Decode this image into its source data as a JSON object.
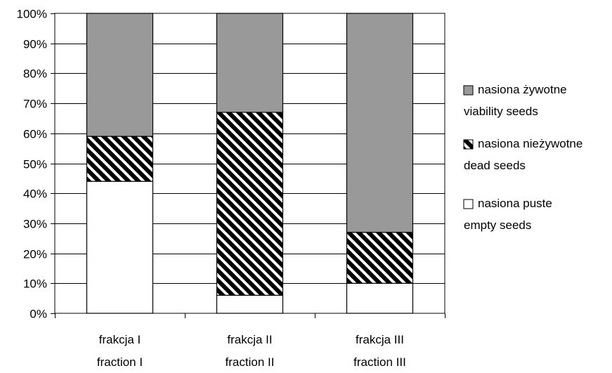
{
  "chart_data": {
    "type": "bar",
    "stacked": true,
    "percent_stacked": true,
    "categories": [
      [
        "frakcja I",
        "fraction I"
      ],
      [
        "frakcja II",
        "fraction II"
      ],
      [
        "frakcja III",
        "fraction III"
      ]
    ],
    "series": [
      {
        "name": [
          "nasiona puste",
          "empty seeds"
        ],
        "values": [
          44,
          6,
          10
        ],
        "color": "#ffffff",
        "fill": "solid"
      },
      {
        "name": [
          "nasiona nieżywotne",
          "dead seeds"
        ],
        "values": [
          15,
          61,
          17
        ],
        "color": "#000000",
        "fill": "diagonal-stripes"
      },
      {
        "name": [
          "nasiona żywotne",
          "viability seeds"
        ],
        "values": [
          41,
          33,
          73
        ],
        "color": "#999999",
        "fill": "solid"
      }
    ],
    "ylim": [
      0,
      100
    ],
    "y_ticks": [
      "0%",
      "10%",
      "20%",
      "30%",
      "40%",
      "50%",
      "60%",
      "70%",
      "80%",
      "90%",
      "100%"
    ],
    "grid": true,
    "legend_position": "right",
    "legend_order": [
      "nasiona żywotne",
      "nasiona nieżywotne",
      "nasiona puste"
    ],
    "title": "",
    "xlabel": "",
    "ylabel": ""
  }
}
